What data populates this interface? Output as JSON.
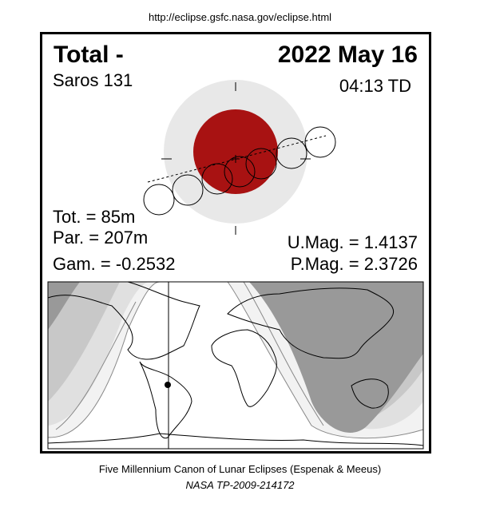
{
  "source_url": "http://eclipse.gsfc.nasa.gov/eclipse.html",
  "eclipse": {
    "type": "Total  -",
    "date": "2022 May 16",
    "saros": "Saros 131",
    "time": "04:13 TD",
    "totality": "Tot. =  85m",
    "partial": "Par. = 207m",
    "gamma": "Gam. = -0.2532",
    "umbral_mag": "U.Mag. = 1.4137",
    "penumbral_mag": "P.Mag. = 2.3726"
  },
  "colors": {
    "umbra": "#a81212",
    "penumbra": "#e8e8e8",
    "night_dark": "#999999",
    "band1": "#c8c8c8",
    "band2": "#e0e0e0",
    "band3": "#f2f2f2"
  },
  "footer": {
    "line1": "Five Millennium Canon of Lunar Eclipses (Espenak & Meeus)",
    "line2": "NASA TP-2009-214172"
  }
}
